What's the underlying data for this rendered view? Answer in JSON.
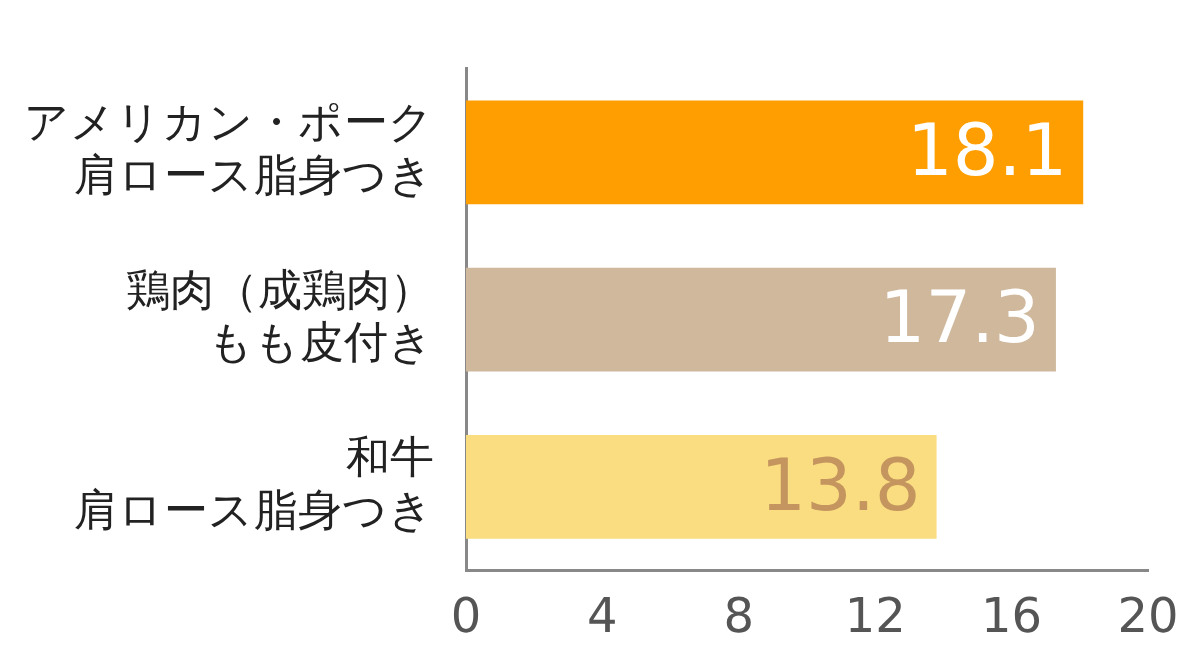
{
  "chart_data": {
    "type": "bar",
    "orientation": "horizontal",
    "categories": [
      "アメリカン・ポーク肩ロース脂身つき",
      "鶏肉（成鶏肉）もも皮付き",
      "和牛肩ロース脂身つき"
    ],
    "values": [
      18.1,
      17.3,
      13.8
    ],
    "colors": [
      "#ff9e00",
      "#cfb89c",
      "#f9dd80"
    ],
    "xlim": [
      0,
      20
    ],
    "xticks": [
      0,
      4,
      8,
      12,
      16,
      20
    ],
    "data_labels": true,
    "grid": false,
    "legend": false
  }
}
